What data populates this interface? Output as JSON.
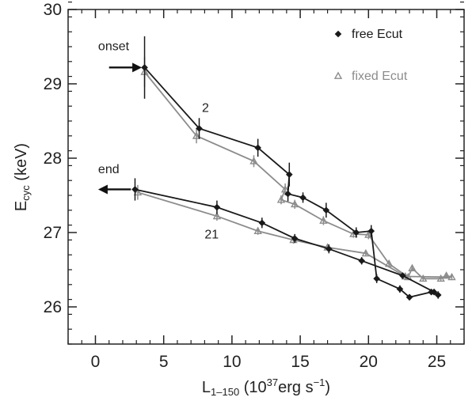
{
  "chart_data": {
    "type": "line",
    "xlabel": {
      "main": "L",
      "sub": "1–150",
      "rest1": " (10",
      "sup": "37",
      "rest2": "erg s",
      "sup2": "−1",
      "close": ")"
    },
    "ylabel": {
      "main": "E",
      "sub": "cyc",
      "rest": "  (keV)"
    },
    "xlim": [
      -2,
      27
    ],
    "ylim": [
      25.5,
      30
    ],
    "xticks": [
      0,
      5,
      10,
      15,
      20,
      25
    ],
    "yticks": [
      26,
      27,
      28,
      29,
      30
    ],
    "xminor_step": 1,
    "yminor_step": 0.2,
    "grid": false,
    "legend_position": "top-right",
    "series": [
      {
        "name": "free Ecut",
        "color": "#1a1a1a",
        "marker": "diamond",
        "points": [
          {
            "x": 3.6,
            "y": 29.22,
            "err": 0.42
          },
          {
            "x": 7.6,
            "y": 28.4,
            "err": 0.14
          },
          {
            "x": 11.9,
            "y": 28.14,
            "err": 0.12
          },
          {
            "x": 14.2,
            "y": 27.78,
            "err": 0.16
          },
          {
            "x": 14.1,
            "y": 27.52,
            "err": 0.1
          },
          {
            "x": 15.2,
            "y": 27.47,
            "err": 0.07
          },
          {
            "x": 16.9,
            "y": 27.3,
            "err": 0.1
          },
          {
            "x": 19.1,
            "y": 27.0,
            "err": 0.07
          },
          {
            "x": 20.2,
            "y": 27.02,
            "err": 0.08
          },
          {
            "x": 20.6,
            "y": 26.38,
            "err": 0.06
          },
          {
            "x": 22.3,
            "y": 26.24,
            "err": 0.05
          },
          {
            "x": 23.0,
            "y": 26.13,
            "err": 0.04
          },
          {
            "x": 24.6,
            "y": 26.2,
            "err": 0.04
          },
          {
            "x": 25.1,
            "y": 26.16,
            "err": 0.05
          },
          {
            "x": 24.8,
            "y": 26.2,
            "err": 0.04
          },
          {
            "x": 22.5,
            "y": 26.42,
            "err": 0.04
          },
          {
            "x": 19.5,
            "y": 26.62,
            "err": 0.05
          },
          {
            "x": 17.1,
            "y": 26.78,
            "err": 0.06
          },
          {
            "x": 14.6,
            "y": 26.92,
            "err": 0.06
          },
          {
            "x": 12.2,
            "y": 27.13,
            "err": 0.07
          },
          {
            "x": 8.9,
            "y": 27.34,
            "err": 0.09
          },
          {
            "x": 2.9,
            "y": 27.58,
            "err": 0.15
          }
        ]
      },
      {
        "name": "fixed Ecut",
        "color": "#8c8c8c",
        "marker": "triangle",
        "points": [
          {
            "x": 3.6,
            "y": 29.16,
            "err": 0.2
          },
          {
            "x": 7.4,
            "y": 28.3,
            "err": 0.1
          },
          {
            "x": 11.6,
            "y": 27.96,
            "err": 0.08
          },
          {
            "x": 13.9,
            "y": 27.58,
            "err": 0.08
          },
          {
            "x": 13.6,
            "y": 27.44,
            "err": 0.06
          },
          {
            "x": 14.6,
            "y": 27.38,
            "err": 0.06
          },
          {
            "x": 16.7,
            "y": 27.16,
            "err": 0.06
          },
          {
            "x": 18.9,
            "y": 26.98,
            "err": 0.05
          },
          {
            "x": 20.0,
            "y": 26.97,
            "err": 0.06
          },
          {
            "x": 21.5,
            "y": 26.58,
            "err": 0.05
          },
          {
            "x": 22.9,
            "y": 26.4,
            "err": 0.04
          },
          {
            "x": 23.2,
            "y": 26.52,
            "err": 0.04
          },
          {
            "x": 24.0,
            "y": 26.38,
            "err": 0.04
          },
          {
            "x": 25.3,
            "y": 26.38,
            "err": 0.04
          },
          {
            "x": 25.7,
            "y": 26.42,
            "err": 0.04
          },
          {
            "x": 26.1,
            "y": 26.4,
            "err": 0.04
          },
          {
            "x": 22.7,
            "y": 26.41,
            "err": 0.04
          },
          {
            "x": 19.8,
            "y": 26.72,
            "err": 0.04
          },
          {
            "x": 17.0,
            "y": 26.8,
            "err": 0.05
          },
          {
            "x": 14.5,
            "y": 26.9,
            "err": 0.05
          },
          {
            "x": 11.9,
            "y": 27.02,
            "err": 0.05
          },
          {
            "x": 8.9,
            "y": 27.22,
            "err": 0.06
          },
          {
            "x": 3.1,
            "y": 27.54,
            "err": 0.1
          }
        ]
      }
    ],
    "annotations": [
      {
        "text": "onset",
        "x": 0.2,
        "y": 29.45
      },
      {
        "text": "end",
        "x": 0.2,
        "y": 27.8
      },
      {
        "text": "2",
        "x": 7.8,
        "y": 28.62
      },
      {
        "text": "21",
        "x": 8.0,
        "y": 26.92
      }
    ],
    "arrows": [
      {
        "label": "onset",
        "direction": "right",
        "x0": 1.0,
        "x1": 3.4,
        "y": 29.22
      },
      {
        "label": "end",
        "direction": "left",
        "x0": 0.2,
        "x1": 2.6,
        "y": 27.58
      }
    ]
  }
}
